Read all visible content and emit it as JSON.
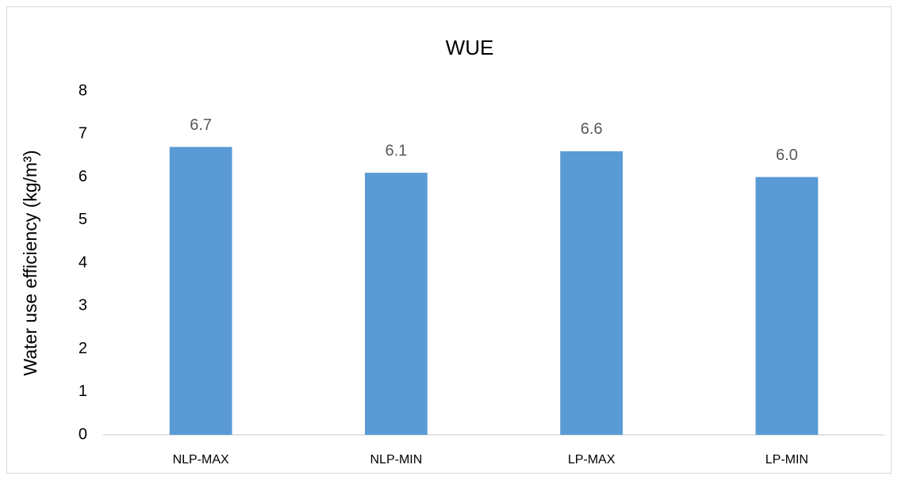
{
  "chart_data": {
    "type": "bar",
    "title": "WUE",
    "y_label": "Water use efficiency  (kg/m³)",
    "categories": [
      "NLP-MAX",
      "NLP-MIN",
      "LP-MAX",
      "LP-MIN"
    ],
    "values": [
      6.7,
      6.1,
      6.6,
      6.0
    ],
    "value_labels": [
      "6.7",
      "6.1",
      "6.6",
      "6.0"
    ],
    "color": "#5b9bd5",
    "ylim": [
      0,
      8
    ],
    "yticks": [
      0,
      1,
      2,
      3,
      4,
      5,
      6,
      7,
      8
    ],
    "grid": false
  }
}
